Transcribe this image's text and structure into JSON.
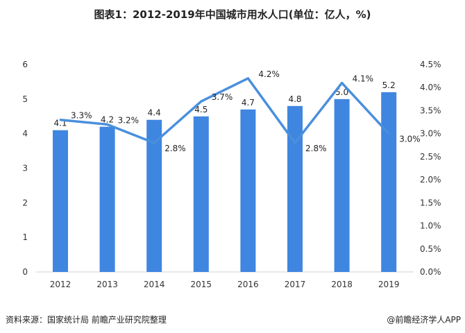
{
  "title": "图表1：2012-2019年中国城市用水人口(单位：亿人，%)",
  "source": "资料来源：国家统计局 前瞻产业研究院整理",
  "credit": "@前瞻经济学人APP",
  "chart_data": {
    "type": "bar+line",
    "title": "图表1：2012-2019年中国城市用水人口(单位：亿人，%)",
    "categories": [
      "2012",
      "2013",
      "2014",
      "2015",
      "2016",
      "2017",
      "2018",
      "2019"
    ],
    "series": [
      {
        "kind": "bar",
        "axis": "left",
        "values": [
          4.1,
          4.2,
          4.4,
          4.5,
          4.7,
          4.8,
          5.0,
          5.2
        ],
        "labels": [
          "4.1",
          "4.2",
          "4.4",
          "4.5",
          "4.7",
          "4.8",
          "5.0",
          "5.2"
        ],
        "color": "#3f86e0"
      },
      {
        "kind": "line",
        "axis": "right",
        "values": [
          3.3,
          3.2,
          2.8,
          3.7,
          4.2,
          2.8,
          4.1,
          3.0
        ],
        "labels": [
          "3.3%",
          "3.2%",
          "2.8%",
          "3.7%",
          "4.2%",
          "2.8%",
          "4.1%",
          "3.0%"
        ],
        "color": "#4a8fdc"
      }
    ],
    "left_axis": {
      "ylim": [
        0,
        6
      ],
      "ticks": [
        "0",
        "1",
        "2",
        "3",
        "4",
        "5",
        "6"
      ]
    },
    "right_axis": {
      "ylim": [
        0,
        4.5
      ],
      "ticks": [
        "0.0%",
        "0.5%",
        "1.0%",
        "1.5%",
        "2.0%",
        "2.5%",
        "3.0%",
        "3.5%",
        "4.0%",
        "4.5%"
      ]
    },
    "grid": false,
    "legend": "none"
  }
}
